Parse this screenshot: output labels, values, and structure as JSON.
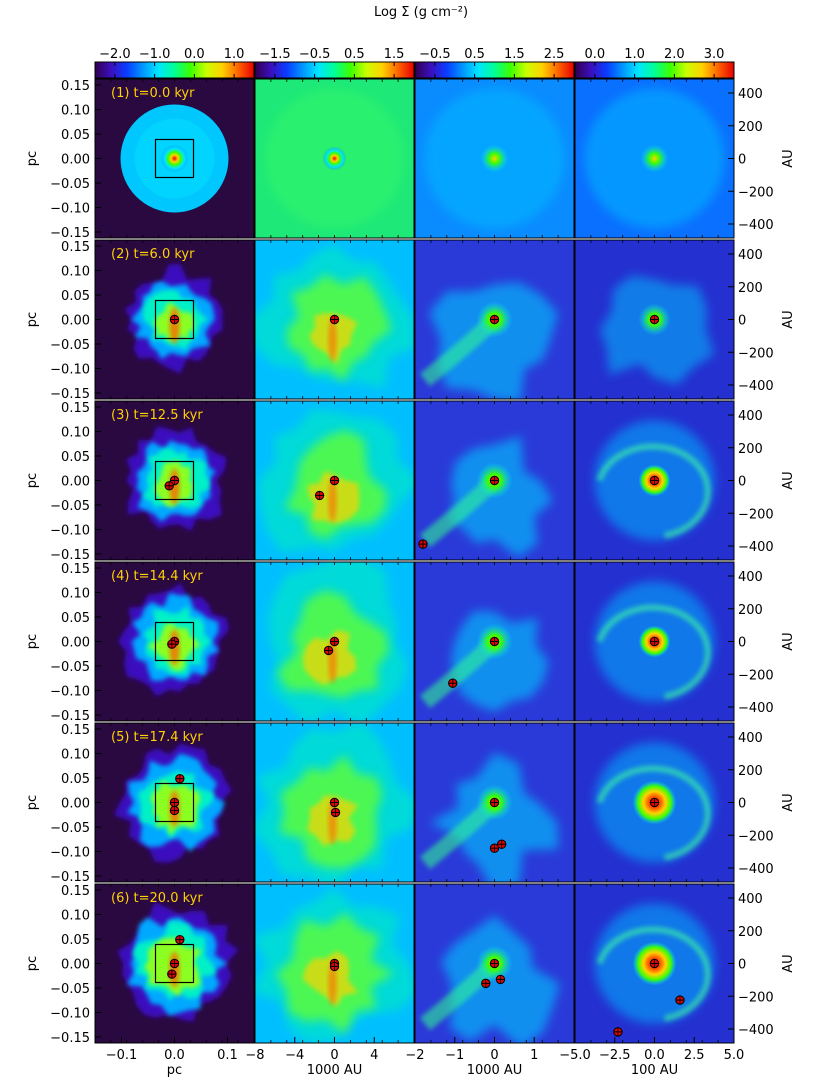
{
  "figure": {
    "colorbar_title": "Log Σ (g cm⁻²)",
    "colorbars": [
      {
        "name": "col1",
        "ticks": [
          "−2.0",
          "−1.0",
          "0.0",
          "1.0"
        ]
      },
      {
        "name": "col2",
        "ticks": [
          "−1.5",
          "−0.5",
          "0.5",
          "1.5"
        ]
      },
      {
        "name": "col3",
        "ticks": [
          "−0.5",
          "0.5",
          "1.5",
          "2.5"
        ]
      },
      {
        "name": "col4",
        "ticks": [
          "0.0",
          "1.0",
          "2.0",
          "3.0"
        ]
      }
    ],
    "colormap": [
      "#30004f",
      "#3b0fbe",
      "#0a3cff",
      "#0096ff",
      "#00e6ff",
      "#00ff96",
      "#3cff00",
      "#c8ff00",
      "#ffd200",
      "#ff6400",
      "#e60000"
    ],
    "background_color": "#2a0840",
    "rows": [
      {
        "label": "(1) t=0.0 kyr"
      },
      {
        "label": "(2) t=6.0 kyr"
      },
      {
        "label": "(3) t=12.5 kyr"
      },
      {
        "label": "(4) t=14.4 kyr"
      },
      {
        "label": "(5) t=17.4 kyr"
      },
      {
        "label": "(6) t=20.0 kyr"
      }
    ],
    "left_axis": {
      "title": "pc",
      "ticks": [
        "0.15",
        "0.10",
        "0.05",
        "0.00",
        "−0.05",
        "−0.10",
        "−0.15"
      ]
    },
    "right_axis": {
      "title": "AU",
      "ticks": [
        "400",
        "200",
        "0",
        "−200",
        "−400"
      ]
    },
    "bottom_axes": [
      {
        "title": "pc",
        "ticks": [
          "−0.1",
          "0.0",
          "0.1"
        ]
      },
      {
        "title": "1000 AU",
        "ticks": [
          "−8",
          "−4",
          "0",
          "4"
        ]
      },
      {
        "title": "1000 AU",
        "ticks": [
          "−2",
          "−1",
          "0",
          "1"
        ]
      },
      {
        "title": "100 AU",
        "ticks": [
          "−5.0",
          "−2.5",
          "0.0",
          "2.5",
          "5.0"
        ]
      }
    ]
  },
  "chart_data": {
    "type": "heatmap",
    "title": "",
    "colorbar_label": "Log Σ (g cm⁻²)",
    "times_kyr": [
      0.0,
      6.0,
      12.5,
      14.4,
      17.4,
      20.0
    ],
    "colorbar_ranges": [
      [
        -2.0,
        1.0
      ],
      [
        -1.5,
        1.5
      ],
      [
        -0.5,
        2.5
      ],
      [
        0.0,
        3.0
      ]
    ],
    "column_extents": [
      {
        "units": "pc",
        "xlim": [
          -0.15,
          0.15
        ],
        "ylim": [
          -0.15,
          0.15
        ]
      },
      {
        "units": "1000 AU",
        "xlim": [
          -8,
          8
        ]
      },
      {
        "units": "1000 AU",
        "xlim": [
          -2,
          2
        ]
      },
      {
        "units": "100 AU",
        "xlim": [
          -5,
          5
        ],
        "ylim_AU": [
          -500,
          500
        ]
      }
    ],
    "sinks": [
      [
        [],
        [],
        [],
        []
      ],
      [
        [
          [
            0.0,
            0.0
          ]
        ],
        [
          [
            0.0,
            0.0
          ]
        ],
        [
          [
            0.0,
            0.0
          ]
        ],
        [
          [
            0.0,
            0.0
          ]
        ]
      ],
      [
        [
          [
            0.0,
            0.0
          ],
          [
            -0.01,
            -0.01
          ]
        ],
        [
          [
            0.0,
            0.0
          ],
          [
            -1.5,
            -1.5
          ]
        ],
        [
          [
            0.0,
            0.0
          ],
          [
            -1.8,
            -1.6
          ]
        ],
        [
          [
            0.0,
            0.0
          ]
        ]
      ],
      [
        [
          [
            0.0,
            0.0
          ],
          [
            -0.005,
            -0.005
          ]
        ],
        [
          [
            0.0,
            0.0
          ],
          [
            -0.6,
            -0.9
          ]
        ],
        [
          [
            0.0,
            0.0
          ],
          [
            -1.05,
            -1.05
          ]
        ],
        [
          [
            0.0,
            0.0
          ]
        ]
      ],
      [
        [
          [
            0.0,
            0.0
          ],
          [
            0.01,
            0.045
          ],
          [
            0.0,
            -0.015
          ]
        ],
        [
          [
            0.0,
            0.0
          ],
          [
            0.1,
            -1.0
          ]
        ],
        [
          [
            0.0,
            0.0
          ],
          [
            0.0,
            -1.15
          ],
          [
            0.18,
            -1.05
          ]
        ],
        [
          [
            0.0,
            0.0
          ]
        ]
      ],
      [
        [
          [
            0.0,
            0.0
          ],
          [
            0.01,
            0.045
          ],
          [
            -0.005,
            -0.02
          ]
        ],
        [
          [
            0.0,
            0.0
          ],
          [
            0.0,
            -0.3
          ]
        ],
        [
          [
            0.0,
            0.0
          ],
          [
            -0.22,
            -0.5
          ],
          [
            0.15,
            -0.4
          ]
        ],
        [
          [
            0.0,
            0.0
          ],
          [
            1.6,
            -2.3
          ],
          [
            -2.3,
            -4.3
          ]
        ]
      ]
    ]
  }
}
